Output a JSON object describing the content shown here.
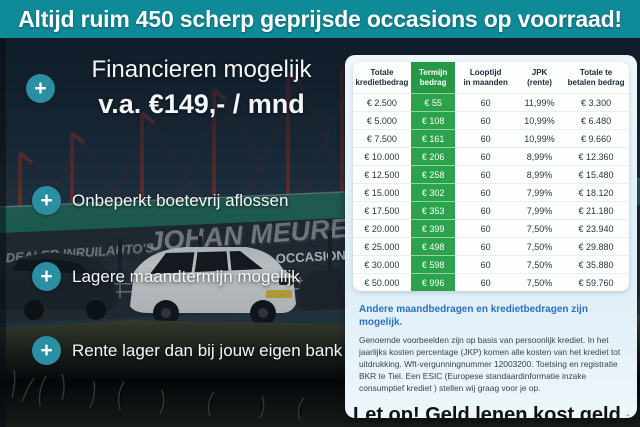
{
  "banner": {
    "text": "Altijd ruim 450 scherp geprijsde occasions op voorraad!"
  },
  "features": {
    "plus_glyph": "+",
    "headline_line1": "Financieren mogelijk",
    "headline_line2": "v.a. €149,- / mnd",
    "bullets": [
      "Onbeperkt boetevrij aflossen",
      "Lagere maandtermijn mogelijk",
      "Rente lager dan bij jouw eigen bank"
    ]
  },
  "photo": {
    "sign_line1": "DEALER INRUILAUTO'S",
    "sign_line2": "JOHAN MEURE",
    "sign_line3": "ALTIJD 450 BOVAG OCCASIONS"
  },
  "card": {
    "table": {
      "headers": [
        {
          "line1": "Totale",
          "line2": "kredietbedrag"
        },
        {
          "line1": "Termijn",
          "line2": "bedrag"
        },
        {
          "line1": "Looptijd",
          "line2": "in maanden"
        },
        {
          "line1": "JPK",
          "line2": "(rente)"
        },
        {
          "line1": "Totale te",
          "line2": "betalen bedrag"
        }
      ],
      "rows": [
        [
          "€ 2.500",
          "€ 55",
          "60",
          "11,99%",
          "€ 3.300"
        ],
        [
          "€ 5.000",
          "€ 108",
          "60",
          "10,99%",
          "€ 6.480"
        ],
        [
          "€ 7.500",
          "€ 161",
          "60",
          "10,99%",
          "€ 9.660"
        ],
        [
          "€ 10.000",
          "€ 206",
          "60",
          "8,99%",
          "€ 12.360"
        ],
        [
          "€ 12.500",
          "€ 258",
          "60",
          "8,99%",
          "€ 15.480"
        ],
        [
          "€ 15.000",
          "€ 302",
          "60",
          "7,99%",
          "€ 18.120"
        ],
        [
          "€ 17.500",
          "€ 353",
          "60",
          "7,99%",
          "€ 21.180"
        ],
        [
          "€ 20.000",
          "€ 399",
          "60",
          "7,50%",
          "€ 23.940"
        ],
        [
          "€ 25.000",
          "€ 498",
          "60",
          "7,50%",
          "€ 29.880"
        ],
        [
          "€ 30.000",
          "€ 598",
          "60",
          "7,50%",
          "€ 35.880"
        ],
        [
          "€ 50.000",
          "€ 996",
          "60",
          "7,50%",
          "€ 59.760"
        ]
      ]
    },
    "note": "Andere maandbedragen en kredietbedragen zijn mogelijk.",
    "fineprint": "Genoemde voorbeelden zijn op basis van persoonlijk krediet. In het jaarlijks kosten percentage (JKP) komen alle kosten van het krediet tot uitdrukking. Wft-vergunningnummer 12003200. Toetsing en registratie BKR te Tiel. Een ESIC (Europese standaardinformatie inzake consumptief krediet ) stellen wij graag voor je op.",
    "warning": "Let op! Geld lenen kost geld",
    "warning_icon_currency": "€"
  },
  "colors": {
    "banner_teal": "#0e8a98",
    "plus_teal": "#2a8fa2",
    "table_green": "#2aa34c",
    "note_blue": "#2e6ec4",
    "warning_red": "#c8372d",
    "sky_navy": "#22384a"
  }
}
